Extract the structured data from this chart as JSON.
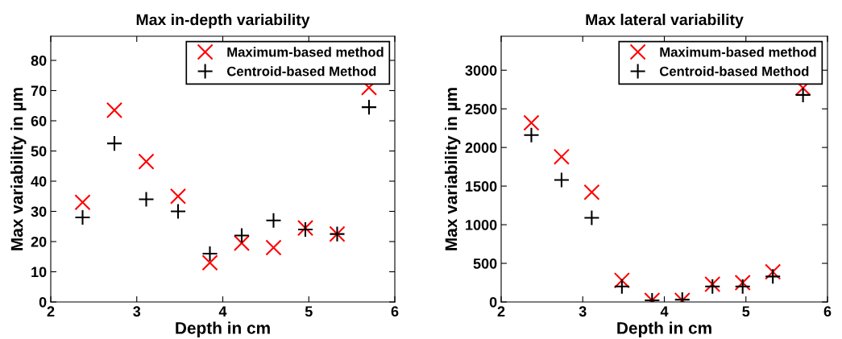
{
  "chart_data": [
    {
      "type": "scatter",
      "title": "Max in-depth variability",
      "xlabel": "Depth in cm",
      "ylabel": "Max variability in µm",
      "x": [
        2.37,
        2.74,
        3.11,
        3.48,
        3.85,
        4.22,
        4.59,
        4.96,
        5.33,
        5.7
      ],
      "xlim": [
        2,
        6
      ],
      "xticks": [
        2,
        3,
        4,
        5,
        6
      ],
      "ylim": [
        0,
        88
      ],
      "yticks": [
        0,
        10,
        20,
        30,
        40,
        50,
        60,
        70,
        80
      ],
      "grid": false,
      "legend": "top right",
      "series": [
        {
          "name": "Maximum-based method",
          "color": "#ff0000",
          "marker": "cross",
          "values": [
            33,
            63.5,
            46.5,
            35,
            13,
            19.5,
            18,
            24.5,
            22.5,
            71
          ]
        },
        {
          "name": "Centroid-based Method",
          "color": "#000000",
          "marker": "plus",
          "values": [
            28,
            52.5,
            34,
            30,
            16,
            22,
            27,
            24,
            22.5,
            64.5
          ]
        }
      ]
    },
    {
      "type": "scatter",
      "title": "Max lateral variability",
      "xlabel": "Depth in cm",
      "ylabel": "Max variability in µm",
      "x": [
        2.37,
        2.74,
        3.11,
        3.48,
        3.85,
        4.22,
        4.59,
        4.96,
        5.33,
        5.7
      ],
      "xlim": [
        2,
        6
      ],
      "xticks": [
        2,
        3,
        4,
        5,
        6
      ],
      "ylim": [
        0,
        3440
      ],
      "yticks": [
        0,
        500,
        1000,
        1500,
        2000,
        2500,
        3000
      ],
      "grid": false,
      "legend": "top right",
      "series": [
        {
          "name": "Maximum-based method",
          "color": "#ff0000",
          "marker": "cross",
          "values": [
            2320,
            1880,
            1420,
            280,
            20,
            20,
            230,
            250,
            390,
            2770
          ]
        },
        {
          "name": "Centroid-based Method",
          "color": "#000000",
          "marker": "plus",
          "values": [
            2160,
            1580,
            1090,
            200,
            20,
            30,
            200,
            200,
            330,
            2680
          ]
        }
      ]
    }
  ]
}
